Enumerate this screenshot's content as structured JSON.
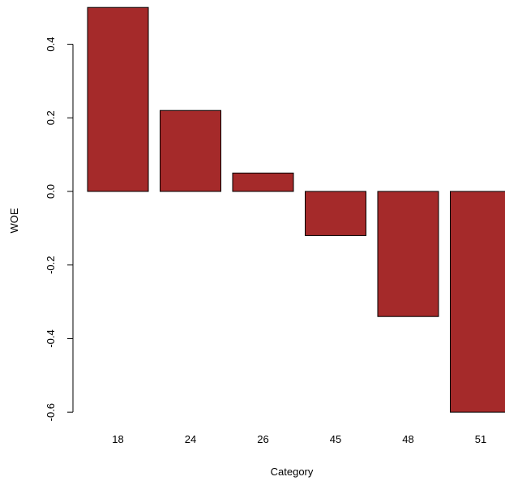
{
  "chart_data": {
    "type": "bar",
    "title": "",
    "xlabel": "Category",
    "ylabel": "WOE",
    "categories": [
      "18",
      "24",
      "26",
      "45",
      "48",
      "51"
    ],
    "values": [
      0.5,
      0.22,
      0.05,
      -0.12,
      -0.34,
      -0.6
    ],
    "ylim": [
      -0.6,
      0.5
    ],
    "yticks": [
      -0.6,
      -0.4,
      -0.2,
      0.0,
      0.2,
      0.4
    ],
    "ytick_labels": [
      "-0.6",
      "-0.4",
      "-0.2",
      "0.0",
      "0.2",
      "0.4"
    ],
    "bar_color": "#A52A2A",
    "grid": false,
    "legend": "none"
  }
}
